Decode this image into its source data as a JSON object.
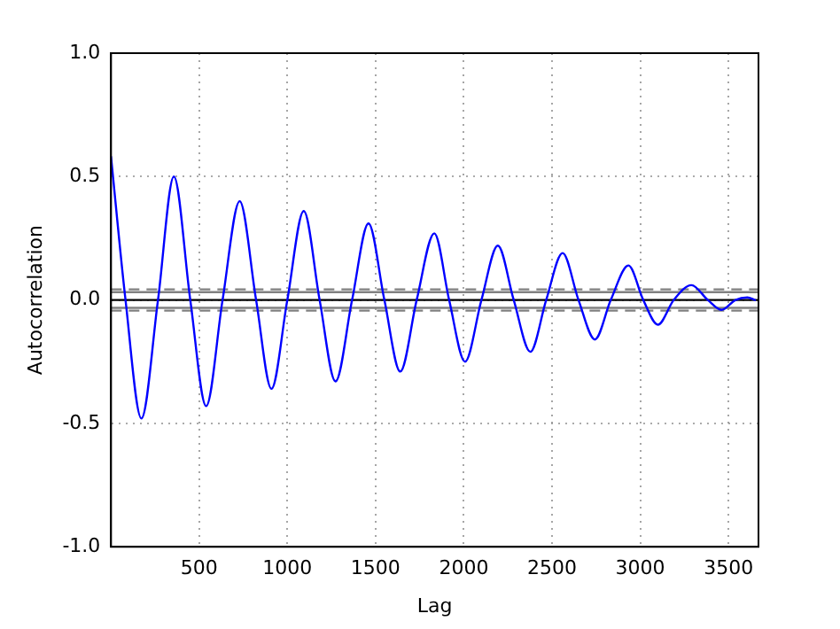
{
  "chart_data": {
    "type": "line",
    "xlabel": "Lag",
    "ylabel": "Autocorrelation",
    "x": [
      1,
      83,
      173,
      267,
      357,
      450,
      540,
      633,
      730,
      823,
      910,
      1000,
      1093,
      1183,
      1273,
      1367,
      1460,
      1550,
      1640,
      1733,
      1833,
      1917,
      2007,
      2100,
      2193,
      2283,
      2377,
      2467,
      2560,
      2650,
      2743,
      2833,
      2933,
      3017,
      3100,
      3190,
      3290,
      3383,
      3460,
      3540,
      3607,
      3650
    ],
    "series": [
      {
        "color": "#0000ff",
        "values": [
          0.58,
          0,
          -0.48,
          0,
          0.5,
          0,
          -0.43,
          0,
          0.4,
          0,
          -0.36,
          0,
          0.36,
          0,
          -0.33,
          0,
          0.31,
          0,
          -0.29,
          0,
          0.27,
          0,
          -0.25,
          0,
          0.22,
          0,
          -0.21,
          0,
          0.19,
          0,
          -0.16,
          0,
          0.14,
          0,
          -0.1,
          0,
          0.06,
          0,
          -0.04,
          0,
          0.01,
          0
        ]
      }
    ],
    "xlim": [
      1,
      3670
    ],
    "xticks": [
      500,
      1000,
      1500,
      2000,
      2500,
      3000,
      3500
    ],
    "ylim": [
      -1,
      1
    ],
    "yticks": [
      {
        "value": -1,
        "label": "-1.0"
      },
      {
        "value": -0.5,
        "label": "-0.5"
      },
      {
        "value": 0,
        "label": "0.0"
      },
      {
        "value": 0.5,
        "label": "0.5"
      },
      {
        "value": 1,
        "label": "1.0"
      }
    ],
    "ref_lines": [
      {
        "axis": "y",
        "value": 0,
        "color": "#000000",
        "line_style": "solid"
      },
      {
        "axis": "y",
        "value": 0.032,
        "color": "#808080",
        "line_style": "solid"
      },
      {
        "axis": "y",
        "value": -0.032,
        "color": "#808080",
        "line_style": "solid"
      },
      {
        "axis": "y",
        "value": 0.043,
        "color": "#808080",
        "line_style": "dashed"
      },
      {
        "axis": "y",
        "value": -0.043,
        "color": "#808080",
        "line_style": "dashed"
      }
    ],
    "grid": true,
    "legend": false,
    "marker": "none",
    "line_style": "solid"
  }
}
